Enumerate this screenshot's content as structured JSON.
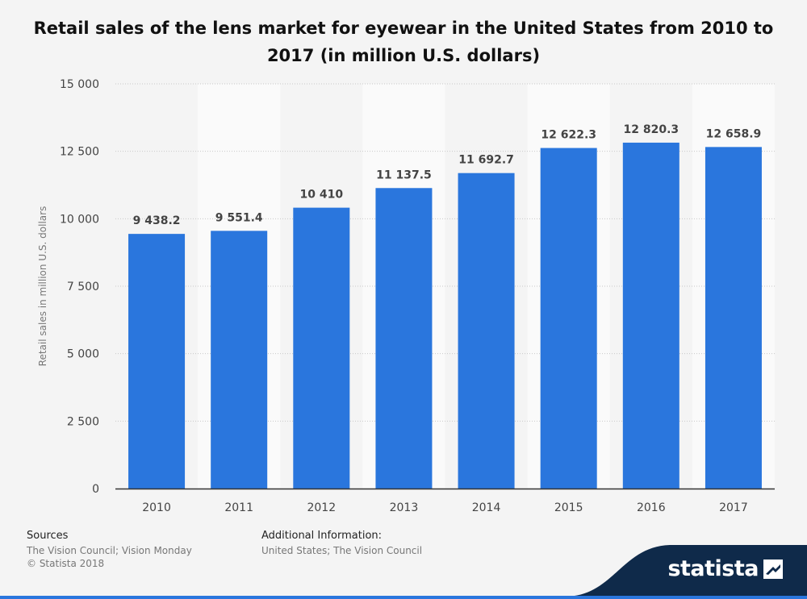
{
  "chart_data": {
    "type": "bar",
    "title": "Retail sales of the lens market for eyewear in the United States from 2010 to 2017 (in million U.S. dollars)",
    "xlabel": "",
    "ylabel": "Retail sales in million U.S. dollars",
    "categories": [
      "2010",
      "2011",
      "2012",
      "2013",
      "2014",
      "2015",
      "2016",
      "2017"
    ],
    "values": [
      9438.2,
      9551.4,
      10410,
      11137.5,
      11692.7,
      12622.3,
      12820.3,
      12658.9
    ],
    "value_labels": [
      "9 438.2",
      "9 551.4",
      "10 410",
      "11 137.5",
      "11 692.7",
      "12 622.3",
      "12 820.3",
      "12 658.9"
    ],
    "ylim": [
      0,
      15000
    ],
    "yticks": [
      0,
      2500,
      5000,
      7500,
      10000,
      12500,
      15000
    ],
    "ytick_labels": [
      "0",
      "2 500",
      "5 000",
      "7 500",
      "10 000",
      "12 500",
      "15 000"
    ],
    "grid": true,
    "bar_color": "#2a76dd"
  },
  "footer": {
    "sources_heading": "Sources",
    "sources_line1": "The Vision Council; Vision Monday",
    "sources_line2": "© Statista 2018",
    "additional_heading": "Additional Information:",
    "additional_text": "United States; The Vision Council"
  },
  "brand": {
    "name": "statista",
    "icon": "statista-logo-icon",
    "band_color": "#0f2a4a",
    "accent": "#2a76dd"
  }
}
